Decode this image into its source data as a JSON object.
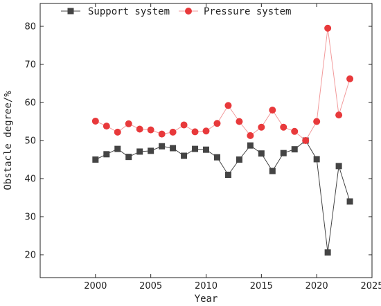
{
  "chart_data": {
    "type": "line",
    "title": "",
    "xlabel": "Year",
    "ylabel": "Obstacle degree/%",
    "xlim": [
      1995,
      2025
    ],
    "ylim": [
      14,
      86
    ],
    "xticks": [
      2000,
      2005,
      2010,
      2015,
      2020,
      2025
    ],
    "yticks": [
      20,
      30,
      40,
      50,
      60,
      70,
      80
    ],
    "grid": false,
    "legend_position": "top-left",
    "x": [
      2000,
      2001,
      2002,
      2003,
      2004,
      2005,
      2006,
      2007,
      2008,
      2009,
      2010,
      2011,
      2012,
      2013,
      2014,
      2015,
      2016,
      2017,
      2018,
      2019,
      2020,
      2021,
      2022,
      2023
    ],
    "series": [
      {
        "name": "Support system",
        "marker": "square",
        "color": "#444444",
        "values": [
          45.0,
          46.4,
          47.8,
          45.7,
          47.1,
          47.3,
          48.5,
          48.0,
          46.0,
          47.8,
          47.6,
          45.6,
          41.0,
          45.0,
          48.7,
          46.6,
          42.0,
          46.7,
          47.7,
          50.0,
          45.1,
          20.6,
          43.3,
          34.0
        ]
      },
      {
        "name": "Pressure system",
        "marker": "circle",
        "color": "#e8393b",
        "line_color": "#f29a9b",
        "values": [
          55.1,
          53.8,
          52.2,
          54.4,
          53.0,
          52.8,
          51.7,
          52.2,
          54.1,
          52.3,
          52.5,
          54.5,
          59.2,
          55.0,
          51.3,
          53.5,
          58.0,
          53.5,
          52.4,
          50.0,
          55.0,
          79.5,
          56.7,
          66.2
        ]
      }
    ]
  }
}
